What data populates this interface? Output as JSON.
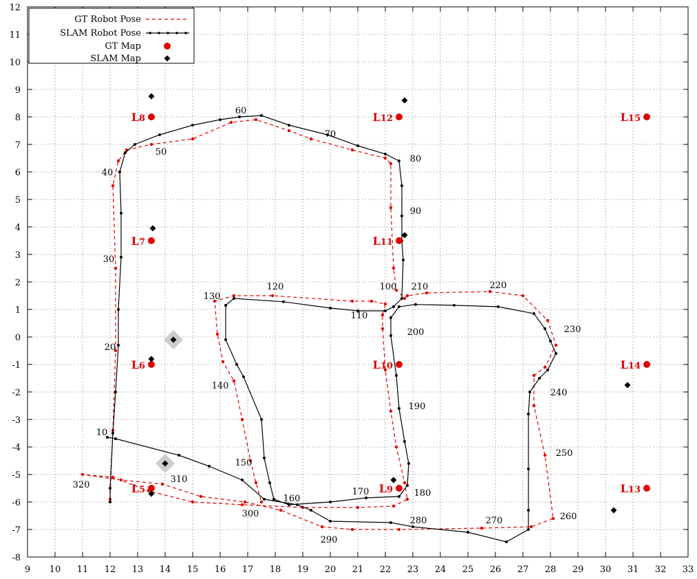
{
  "chart_data": {
    "type": "scatter",
    "xlim": [
      9,
      33
    ],
    "ylim": [
      -8,
      12
    ],
    "x_ticks": [
      "9",
      "10",
      "11",
      "12",
      "13",
      "14",
      "15",
      "16",
      "17",
      "18",
      "19",
      "20",
      "21",
      "22",
      "23",
      "24",
      "25",
      "26",
      "27",
      "28",
      "29",
      "30",
      "31",
      "32",
      "33"
    ],
    "y_ticks": [
      "-8",
      "-7",
      "-6",
      "-5",
      "-4",
      "-3",
      "-2",
      "-1",
      "0",
      "1",
      "2",
      "3",
      "4",
      "5",
      "6",
      "7",
      "8",
      "9",
      "10",
      "11",
      "12"
    ],
    "grid": true,
    "legend_position": "top-left",
    "colors": {
      "gt": "#e00000",
      "slam": "#000000",
      "grid": "#888888",
      "highlight": "#c8c8c8"
    },
    "series": [
      {
        "name": "GT Robot Pose",
        "style": "dashed-line",
        "points": [
          [
            12.0,
            -5.9
          ],
          [
            12.1,
            -3.4
          ],
          [
            12.2,
            -0.5
          ],
          [
            12.2,
            2.5
          ],
          [
            12.1,
            5.5
          ],
          [
            12.3,
            6.4
          ],
          [
            12.6,
            6.8
          ],
          [
            13.5,
            7.0
          ],
          [
            15.0,
            7.2
          ],
          [
            16.4,
            7.8
          ],
          [
            17.3,
            7.9
          ],
          [
            18.5,
            7.5
          ],
          [
            19.3,
            7.2
          ],
          [
            20.8,
            6.8
          ],
          [
            22.0,
            6.5
          ],
          [
            22.2,
            6.3
          ],
          [
            22.2,
            4.7
          ],
          [
            22.3,
            2.5
          ],
          [
            22.4,
            1.7
          ],
          [
            22.7,
            1.4
          ],
          [
            22.8,
            1.5
          ],
          [
            23.5,
            1.6
          ],
          [
            25.8,
            1.65
          ],
          [
            27.0,
            1.5
          ],
          [
            27.9,
            0.6
          ],
          [
            28.2,
            -0.3
          ],
          [
            27.8,
            -1.1
          ],
          [
            27.4,
            -1.4
          ],
          [
            27.4,
            -2.5
          ],
          [
            27.8,
            -4.3
          ],
          [
            28.1,
            -6.6
          ],
          [
            27.3,
            -6.9
          ],
          [
            25.5,
            -6.95
          ],
          [
            22.5,
            -7.0
          ],
          [
            20.8,
            -7.0
          ],
          [
            19.7,
            -6.9
          ],
          [
            18.2,
            -6.3
          ],
          [
            16.9,
            -6.0
          ],
          [
            15.3,
            -5.8
          ],
          [
            13.9,
            -5.35
          ],
          [
            12.4,
            -5.2
          ],
          [
            11.0,
            -5.0
          ],
          [
            12.1,
            -5.1
          ],
          [
            13.4,
            -5.6
          ],
          [
            15.0,
            -6.0
          ],
          [
            16.8,
            -6.1
          ],
          [
            19.0,
            -6.2
          ],
          [
            21.0,
            -6.2
          ],
          [
            22.3,
            -6.15
          ],
          [
            22.8,
            -5.9
          ],
          [
            22.7,
            -5.3
          ],
          [
            22.4,
            -4.0
          ],
          [
            22.2,
            -2.7
          ],
          [
            22.0,
            -1.2
          ],
          [
            21.9,
            0.3
          ],
          [
            21.9,
            0.8
          ],
          [
            22.0,
            1.2
          ],
          [
            21.5,
            1.3
          ],
          [
            20.8,
            1.3
          ],
          [
            17.9,
            1.5
          ],
          [
            16.5,
            1.5
          ],
          [
            15.8,
            1.3
          ],
          [
            15.9,
            0.1
          ],
          [
            16.1,
            -0.9
          ],
          [
            16.5,
            -1.6
          ],
          [
            16.8,
            -3.0
          ],
          [
            17.1,
            -4.5
          ],
          [
            17.3,
            -5.3
          ],
          [
            17.5,
            -6.0
          ]
        ]
      },
      {
        "name": "SLAM Robot Pose",
        "style": "solid-line-dots",
        "points": [
          [
            12.0,
            -6.0
          ],
          [
            12.0,
            -5.5
          ],
          [
            12.1,
            -3.5
          ],
          [
            12.2,
            -2.0
          ],
          [
            12.3,
            -0.3
          ],
          [
            12.3,
            1.0
          ],
          [
            12.4,
            2.9
          ],
          [
            12.4,
            4.5
          ],
          [
            12.35,
            6.0
          ],
          [
            12.55,
            6.7
          ],
          [
            12.9,
            7.0
          ],
          [
            13.8,
            7.35
          ],
          [
            15.0,
            7.7
          ],
          [
            16.0,
            7.9
          ],
          [
            16.7,
            8.0
          ],
          [
            17.5,
            8.05
          ],
          [
            18.5,
            7.7
          ],
          [
            19.9,
            7.35
          ],
          [
            21.0,
            6.95
          ],
          [
            22.0,
            6.65
          ],
          [
            22.5,
            6.4
          ],
          [
            22.6,
            5.5
          ],
          [
            22.6,
            4.4
          ],
          [
            22.6,
            3.5
          ],
          [
            22.65,
            2.8
          ],
          [
            22.6,
            1.4
          ],
          [
            22.3,
            1.1
          ],
          [
            22.0,
            0.95
          ],
          [
            21.0,
            0.95
          ],
          [
            20.0,
            1.05
          ],
          [
            18.3,
            1.28
          ],
          [
            16.5,
            1.4
          ],
          [
            16.2,
            1.15
          ],
          [
            16.2,
            -0.1
          ],
          [
            16.6,
            -1.0
          ],
          [
            16.85,
            -1.45
          ],
          [
            17.5,
            -3.0
          ],
          [
            17.6,
            -4.4
          ],
          [
            17.8,
            -5.3
          ],
          [
            17.95,
            -5.9
          ],
          [
            18.5,
            -6.1
          ],
          [
            20.0,
            -6.0
          ],
          [
            21.3,
            -5.85
          ],
          [
            22.5,
            -5.8
          ],
          [
            22.8,
            -5.4
          ],
          [
            22.85,
            -4.6
          ],
          [
            22.7,
            -3.8
          ],
          [
            22.5,
            -2.6
          ],
          [
            22.4,
            -1.4
          ],
          [
            22.2,
            0.05
          ],
          [
            22.2,
            0.7
          ],
          [
            22.5,
            1.1
          ],
          [
            23.1,
            1.18
          ],
          [
            24.5,
            1.15
          ],
          [
            26.1,
            1.1
          ],
          [
            27.4,
            0.85
          ],
          [
            27.8,
            0.3
          ],
          [
            28.0,
            -0.15
          ],
          [
            28.2,
            -0.6
          ],
          [
            27.9,
            -1.2
          ],
          [
            27.6,
            -1.5
          ],
          [
            27.25,
            -2.0
          ],
          [
            27.2,
            -2.8
          ],
          [
            27.2,
            -4.8
          ],
          [
            27.2,
            -6.3
          ],
          [
            27.2,
            -7.0
          ],
          [
            26.4,
            -7.45
          ],
          [
            25.0,
            -7.1
          ],
          [
            23.0,
            -6.9
          ],
          [
            22.2,
            -6.75
          ],
          [
            20.0,
            -6.7
          ],
          [
            19.3,
            -6.3
          ],
          [
            18.8,
            -6.1
          ],
          [
            17.6,
            -5.9
          ],
          [
            16.8,
            -5.2
          ],
          [
            15.6,
            -4.7
          ],
          [
            14.5,
            -4.3
          ],
          [
            12.2,
            -3.7
          ],
          [
            11.9,
            -3.65
          ]
        ]
      },
      {
        "name": "GT Map",
        "style": "markers-circle",
        "points": [
          [
            13.5,
            -5.5
          ],
          [
            13.5,
            -1.0
          ],
          [
            13.5,
            3.5
          ],
          [
            13.5,
            8.0
          ],
          [
            22.5,
            -5.5
          ],
          [
            22.5,
            -1.0
          ],
          [
            22.5,
            3.5
          ],
          [
            22.5,
            8.0
          ],
          [
            31.5,
            -5.5
          ],
          [
            31.5,
            -1.0
          ],
          [
            31.5,
            8.0
          ]
        ]
      },
      {
        "name": "SLAM Map",
        "style": "markers-diamond",
        "points": [
          [
            13.5,
            -5.7
          ],
          [
            13.5,
            -0.8
          ],
          [
            13.55,
            3.95
          ],
          [
            13.5,
            8.75
          ],
          [
            22.3,
            -5.2
          ],
          [
            22.7,
            3.7
          ],
          [
            22.7,
            8.6
          ],
          [
            30.3,
            -6.3
          ],
          [
            30.8,
            -1.75
          ],
          [
            14.0,
            -4.6
          ],
          [
            14.3,
            -0.1
          ]
        ]
      }
    ],
    "highlighted_points": [
      [
        14.0,
        -4.6
      ],
      [
        14.3,
        -0.1
      ]
    ],
    "landmark_labels": [
      {
        "text": "L5",
        "sub": "5",
        "x": 13.5,
        "y": -5.5
      },
      {
        "text": "L6",
        "sub": "6",
        "x": 13.5,
        "y": -1.0
      },
      {
        "text": "L7",
        "sub": "7",
        "x": 13.5,
        "y": 3.5
      },
      {
        "text": "L8",
        "sub": "8",
        "x": 13.5,
        "y": 8.0
      },
      {
        "text": "L9",
        "sub": "9",
        "x": 22.5,
        "y": -5.5
      },
      {
        "text": "L10",
        "sub": "10",
        "x": 22.5,
        "y": -1.0
      },
      {
        "text": "L11",
        "sub": "11",
        "x": 22.5,
        "y": 3.5
      },
      {
        "text": "L12",
        "sub": "12",
        "x": 22.5,
        "y": 8.0
      },
      {
        "text": "L13",
        "sub": "13",
        "x": 31.5,
        "y": -5.5
      },
      {
        "text": "L14",
        "sub": "14",
        "x": 31.5,
        "y": -1.0
      },
      {
        "text": "L15",
        "sub": "15",
        "x": 31.5,
        "y": 8.0
      }
    ],
    "pose_labels": [
      {
        "text": "10",
        "x": 11.7,
        "y": -3.45
      },
      {
        "text": "20",
        "x": 12.0,
        "y": -0.35
      },
      {
        "text": "30",
        "x": 11.95,
        "y": 2.85
      },
      {
        "text": "40",
        "x": 11.9,
        "y": 6.0
      },
      {
        "text": "50",
        "x": 13.85,
        "y": 6.75
      },
      {
        "text": "60",
        "x": 16.75,
        "y": 8.25
      },
      {
        "text": "70",
        "x": 20.0,
        "y": 7.4
      },
      {
        "text": "80",
        "x": 23.1,
        "y": 6.5
      },
      {
        "text": "90",
        "x": 23.1,
        "y": 4.6
      },
      {
        "text": "100",
        "x": 22.1,
        "y": 1.85
      },
      {
        "text": "110",
        "x": 21.05,
        "y": 0.8
      },
      {
        "text": "120",
        "x": 18.0,
        "y": 1.85
      },
      {
        "text": "130",
        "x": 15.7,
        "y": 1.5
      },
      {
        "text": "140",
        "x": 16.0,
        "y": -1.75
      },
      {
        "text": "150",
        "x": 16.85,
        "y": -4.55
      },
      {
        "text": "160",
        "x": 18.6,
        "y": -5.85
      },
      {
        "text": "170",
        "x": 21.1,
        "y": -5.6
      },
      {
        "text": "180",
        "x": 23.35,
        "y": -5.65
      },
      {
        "text": "190",
        "x": 23.15,
        "y": -2.5
      },
      {
        "text": "200",
        "x": 23.1,
        "y": 0.2
      },
      {
        "text": "210",
        "x": 23.25,
        "y": 1.85
      },
      {
        "text": "220",
        "x": 26.1,
        "y": 1.9
      },
      {
        "text": "230",
        "x": 28.8,
        "y": 0.3
      },
      {
        "text": "240",
        "x": 28.3,
        "y": -2.0
      },
      {
        "text": "250",
        "x": 28.5,
        "y": -4.2
      },
      {
        "text": "260",
        "x": 28.65,
        "y": -6.5
      },
      {
        "text": "270",
        "x": 25.95,
        "y": -6.65
      },
      {
        "text": "280",
        "x": 23.2,
        "y": -6.65
      },
      {
        "text": "290",
        "x": 19.95,
        "y": -7.35
      },
      {
        "text": "300",
        "x": 17.1,
        "y": -6.4
      },
      {
        "text": "310",
        "x": 14.5,
        "y": -5.15
      },
      {
        "text": "320",
        "x": 10.95,
        "y": -5.35
      }
    ]
  },
  "legend": {
    "items": [
      {
        "label": "GT Robot Pose"
      },
      {
        "label": "SLAM Robot Pose"
      },
      {
        "label": "GT Map"
      },
      {
        "label": "SLAM Map"
      }
    ]
  }
}
